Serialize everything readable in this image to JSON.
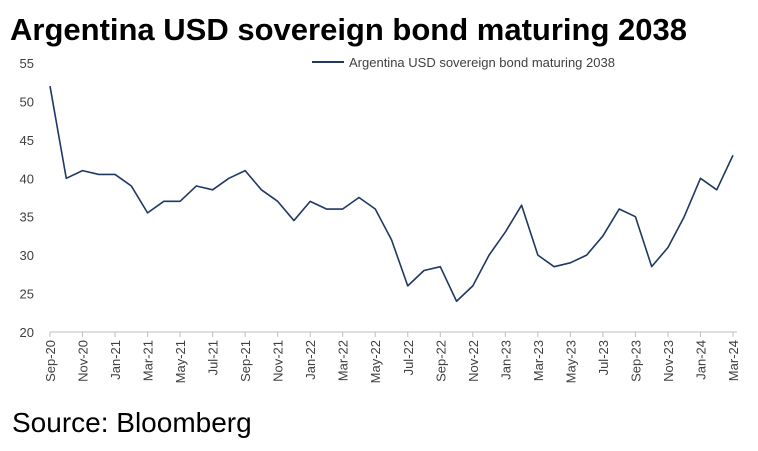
{
  "chart_data": {
    "type": "line",
    "title": "Argentina USD sovereign bond maturing 2038",
    "source": "Source: Bloomberg",
    "categories": [
      "Sep-20",
      null,
      "Nov-20",
      null,
      "Jan-21",
      null,
      "Mar-21",
      null,
      "May-21",
      null,
      "Jul-21",
      null,
      "Sep-21",
      null,
      "Nov-21",
      null,
      "Jan-22",
      null,
      "Mar-22",
      null,
      "May-22",
      null,
      "Jul-22",
      null,
      "Sep-22",
      null,
      "Nov-22",
      null,
      "Jan-23",
      null,
      "Mar-23",
      null,
      "May-23",
      null,
      "Jul-23",
      null,
      "Sep-23",
      null,
      "Nov-23",
      null,
      "Jan-24",
      null,
      "Mar-24"
    ],
    "series": [
      {
        "name": "Argentina USD sovereign bond maturing 2038",
        "color": "#1f3864",
        "values": [
          52,
          40,
          41,
          40.5,
          40.5,
          39,
          35.5,
          37,
          37,
          39,
          38.5,
          40,
          41,
          38.5,
          37,
          34.5,
          37,
          36,
          36,
          37.5,
          36,
          32,
          26,
          28,
          28.5,
          24,
          26,
          30,
          33,
          36.5,
          30,
          28.5,
          29,
          30,
          32.5,
          36,
          35,
          28.5,
          31,
          35,
          40,
          38.5,
          43
        ]
      }
    ],
    "ylim": [
      20,
      55
    ],
    "yticks": [
      20,
      25,
      30,
      35,
      40,
      45,
      50,
      55
    ],
    "grid": false,
    "legend": "top"
  }
}
